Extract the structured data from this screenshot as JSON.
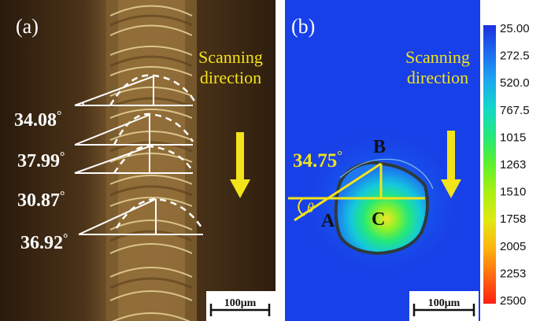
{
  "panel_a": {
    "label": "(a)",
    "direction_text": [
      "Scanning",
      "direction"
    ],
    "angles": [
      "34.08",
      "37.99",
      "30.87",
      "36.92"
    ],
    "degree_symbol": "°",
    "scale_bar": "100μm"
  },
  "panel_b": {
    "label": "(b)",
    "direction_text": [
      "Scanning",
      "direction"
    ],
    "angle": "34.75",
    "degree_symbol": "°",
    "points": {
      "A": "A",
      "B": "B",
      "C": "C"
    },
    "theta": "θ",
    "scale_bar": "100μm"
  },
  "colorbar": {
    "ticks": [
      "25.00",
      "272.5",
      "520.0",
      "767.5",
      "1015",
      "1263",
      "1510",
      "1758",
      "2005",
      "2253",
      "2500"
    ],
    "colors": [
      "#1c2fe0",
      "#1c6cf0",
      "#1ca8f0",
      "#12d8c8",
      "#24e87a",
      "#5ef02a",
      "#a8f014",
      "#e0e812",
      "#ffb410",
      "#ff6a10",
      "#ff1e10"
    ]
  },
  "colors": {
    "accent_yellow": "#f2e31a",
    "panel_b_background": "#1840e8",
    "melt_pool_outline": "#2e3a3c"
  }
}
